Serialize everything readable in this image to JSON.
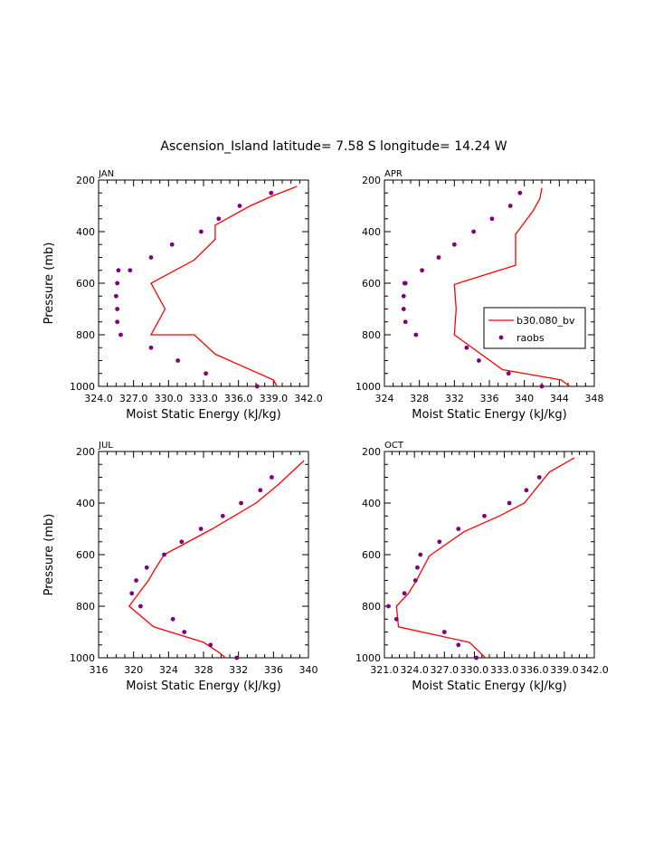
{
  "title": "Ascension_Island  latitude= 7.58 S longitude= 14.24 W",
  "colors": {
    "model": "#ff0000",
    "obs": "#800080",
    "axis": "#000000"
  },
  "legend": {
    "model_label": "b30.080_bv",
    "obs_label": "raobs"
  },
  "chart_data": [
    {
      "type": "line",
      "panel": "JAN",
      "xlabel": "Moist Static Energy (kJ/kg)",
      "ylabel": "Pressure (mb)",
      "xlim": [
        324.0,
        342.0
      ],
      "ylim": [
        1000,
        200
      ],
      "xticks": [
        324.0,
        327.0,
        330.0,
        333.0,
        336.0,
        339.0,
        342.0
      ],
      "xtick_labels": [
        "324.0",
        "327.0",
        "330.0",
        "333.0",
        "336.0",
        "339.0",
        "342.0"
      ],
      "yticks": [
        200,
        400,
        600,
        800,
        1000
      ],
      "ytick_labels": [
        "200",
        "400",
        "600",
        "800",
        "1000"
      ],
      "series": [
        {
          "name": "b30.080_bv",
          "kind": "line",
          "x": [
            339.3,
            339.0,
            334.0,
            332.2,
            328.5,
            329.7,
            328.5,
            332.2,
            334.0,
            334.0,
            337.0,
            339.0,
            341.0
          ],
          "y": [
            1000,
            975,
            875,
            800,
            800,
            700,
            600,
            510,
            430,
            375,
            300,
            260,
            225
          ]
        },
        {
          "name": "raobs",
          "kind": "scatter",
          "x": [
            337.6,
            333.2,
            330.8,
            328.5,
            325.9,
            325.6,
            325.6,
            325.5,
            325.6,
            325.7,
            326.7,
            328.5,
            330.3,
            332.8,
            334.3,
            336.1,
            338.8
          ],
          "y": [
            1000,
            950,
            900,
            850,
            800,
            750,
            700,
            650,
            600,
            550,
            550,
            500,
            450,
            400,
            350,
            300,
            250
          ]
        }
      ]
    },
    {
      "type": "line",
      "panel": "APR",
      "xlabel": "Moist Static Energy (kJ/kg)",
      "ylabel": "",
      "xlim": [
        324,
        348
      ],
      "ylim": [
        1000,
        200
      ],
      "xticks": [
        324,
        328,
        332,
        336,
        340,
        344,
        348
      ],
      "xtick_labels": [
        "324",
        "328",
        "332",
        "336",
        "340",
        "344",
        "348"
      ],
      "yticks": [
        200,
        400,
        600,
        800,
        1000
      ],
      "ytick_labels": [
        "200",
        "400",
        "600",
        "800",
        "1000"
      ],
      "series": [
        {
          "name": "b30.080_bv",
          "kind": "line",
          "x": [
            345.2,
            344.2,
            337.5,
            332.0,
            332.2,
            332.0,
            339.0,
            339.0,
            341.0,
            341.8,
            342.0
          ],
          "y": [
            1000,
            975,
            935,
            800,
            700,
            605,
            530,
            410,
            320,
            270,
            230
          ]
        },
        {
          "name": "raobs",
          "kind": "scatter",
          "x": [
            342.0,
            338.2,
            334.8,
            333.4,
            327.6,
            326.4,
            326.2,
            326.2,
            326.3,
            326.4,
            328.3,
            330.2,
            332.0,
            334.2,
            336.3,
            338.4,
            339.5
          ],
          "y": [
            1000,
            950,
            900,
            850,
            800,
            750,
            700,
            650,
            600,
            600,
            550,
            500,
            450,
            400,
            350,
            300,
            250
          ]
        }
      ]
    },
    {
      "type": "line",
      "panel": "JUL",
      "xlabel": "Moist Static Energy (kJ/kg)",
      "ylabel": "Pressure (mb)",
      "xlim": [
        316,
        340
      ],
      "ylim": [
        1000,
        200
      ],
      "xticks": [
        316,
        320,
        324,
        328,
        332,
        336,
        340
      ],
      "xtick_labels": [
        "316",
        "320",
        "324",
        "328",
        "332",
        "336",
        "340"
      ],
      "yticks": [
        200,
        400,
        600,
        800,
        1000
      ],
      "ytick_labels": [
        "200",
        "400",
        "600",
        "800",
        "1000"
      ],
      "series": [
        {
          "name": "b30.080_bv",
          "kind": "line",
          "x": [
            330.5,
            329.8,
            328.0,
            322.3,
            319.5,
            321.7,
            322.3,
            323.5,
            329.0,
            334.0,
            336.5,
            339.5
          ],
          "y": [
            1000,
            980,
            940,
            880,
            800,
            700,
            665,
            600,
            500,
            400,
            330,
            235
          ]
        },
        {
          "name": "raobs",
          "kind": "scatter",
          "x": [
            331.8,
            328.8,
            325.8,
            324.5,
            320.8,
            319.8,
            320.3,
            321.5,
            323.5,
            325.5,
            327.7,
            330.2,
            332.3,
            334.5,
            335.8
          ],
          "y": [
            1000,
            950,
            900,
            850,
            800,
            750,
            700,
            650,
            600,
            550,
            500,
            450,
            400,
            350,
            300
          ]
        }
      ]
    },
    {
      "type": "line",
      "panel": "OCT",
      "xlabel": "Moist Static Energy (kJ/kg)",
      "ylabel": "",
      "xlim": [
        321.0,
        342.0
      ],
      "ylim": [
        1000,
        200
      ],
      "xticks": [
        321.0,
        324.0,
        327.0,
        330.0,
        333.0,
        336.0,
        339.0,
        342.0
      ],
      "xtick_labels": [
        "321.0",
        "324.0",
        "327.0",
        "330.0",
        "333.0",
        "336.0",
        "339.0",
        "342.0"
      ],
      "yticks": [
        200,
        400,
        600,
        800,
        1000
      ],
      "ytick_labels": [
        "200",
        "400",
        "600",
        "800",
        "1000"
      ],
      "series": [
        {
          "name": "b30.080_bv",
          "kind": "line",
          "x": [
            331.1,
            329.5,
            322.4,
            322.2,
            322.2,
            323.4,
            324.2,
            325.5,
            329.0,
            332.5,
            335.0,
            337.5,
            340.0
          ],
          "y": [
            1000,
            940,
            880,
            800,
            800,
            750,
            700,
            605,
            510,
            450,
            400,
            280,
            225
          ]
        },
        {
          "name": "raobs",
          "kind": "scatter",
          "x": [
            330.2,
            328.4,
            327.0,
            322.2,
            321.4,
            323.0,
            324.1,
            324.3,
            324.6,
            326.5,
            328.4,
            331.0,
            333.5,
            335.2,
            336.5
          ],
          "y": [
            1000,
            950,
            900,
            850,
            800,
            750,
            700,
            650,
            600,
            550,
            500,
            450,
            400,
            350,
            300
          ]
        }
      ]
    }
  ]
}
